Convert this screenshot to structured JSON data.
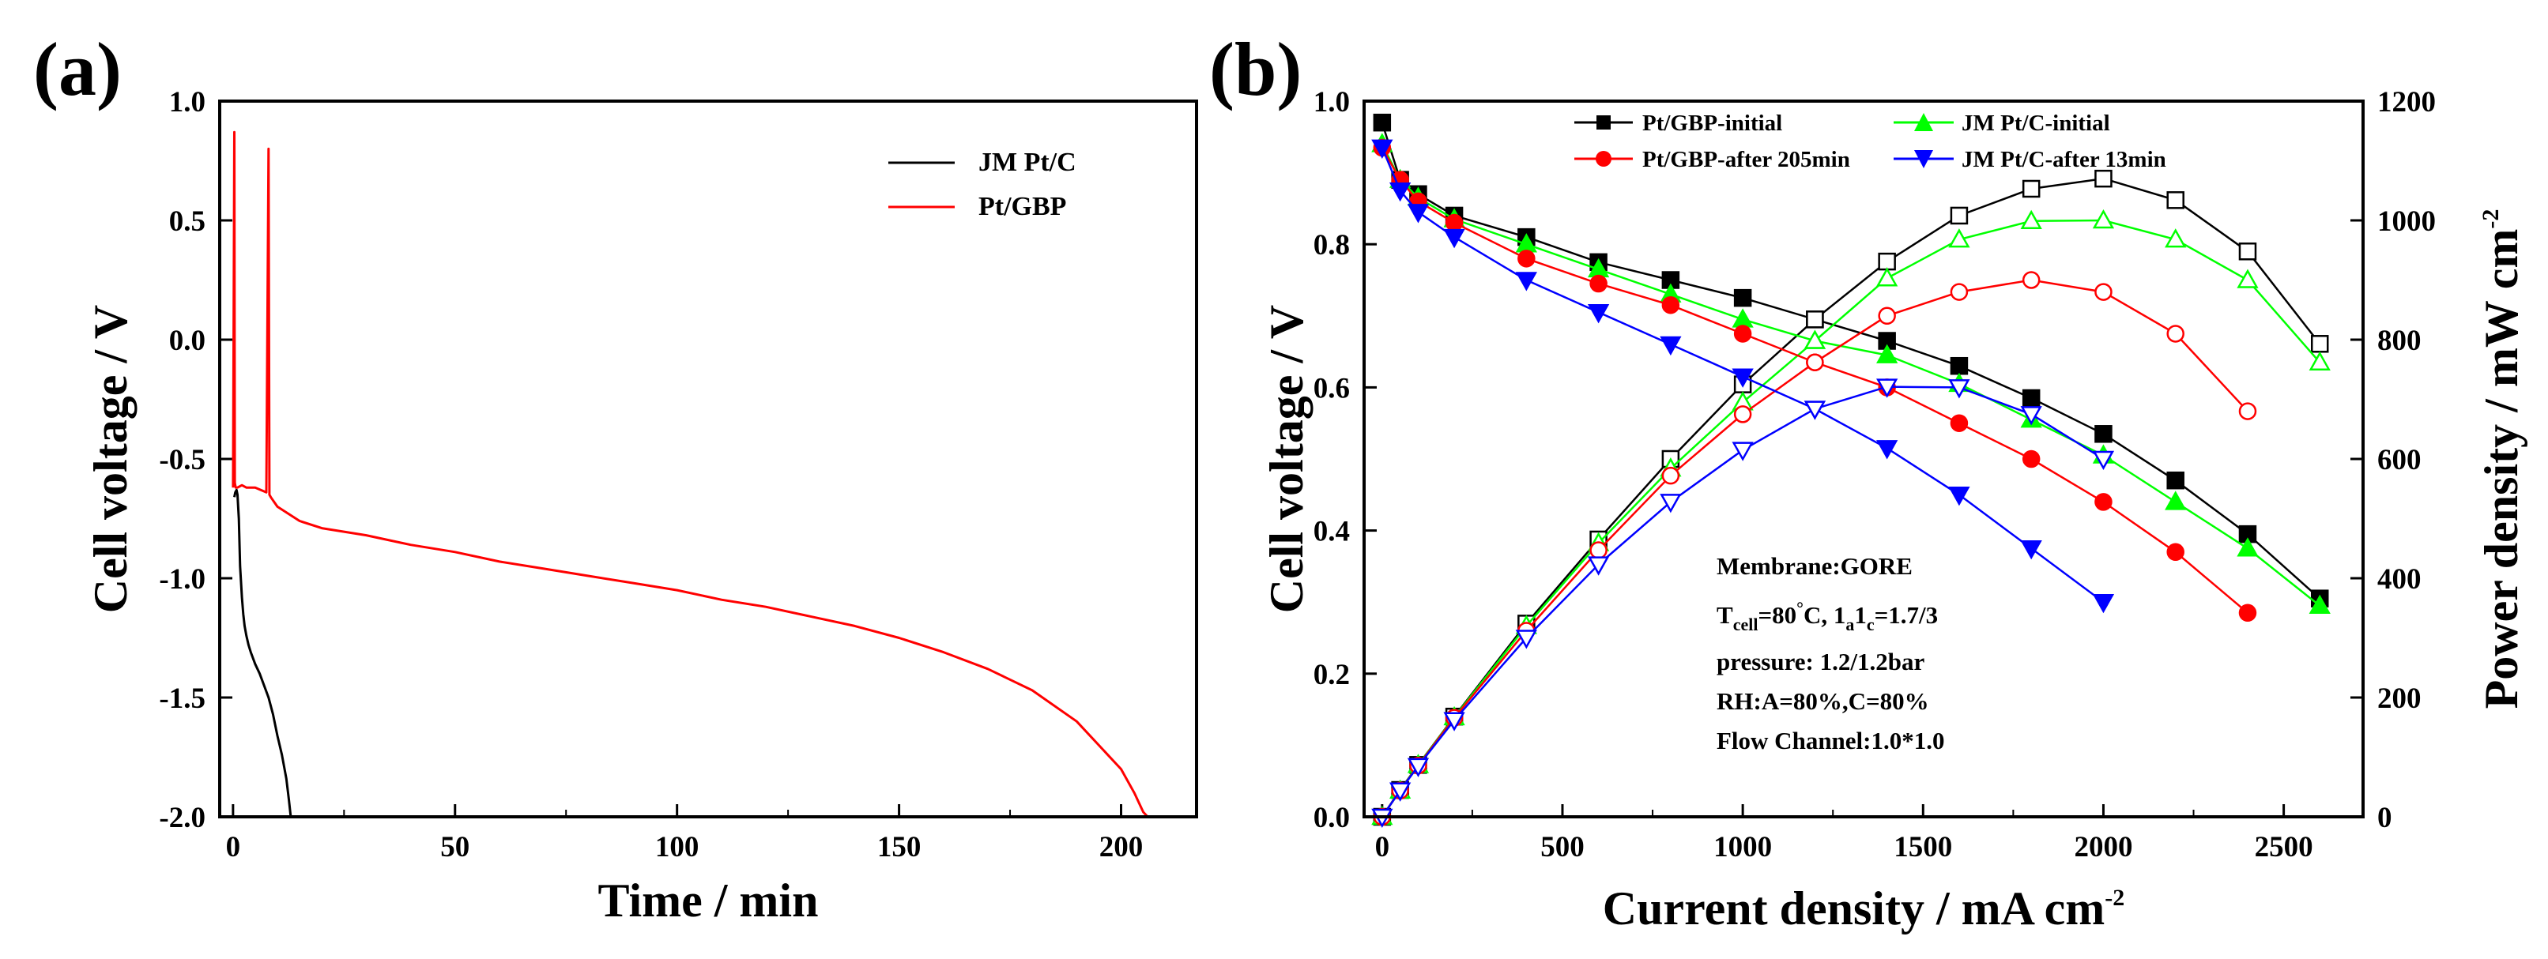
{
  "panel_a": {
    "label": "(a)",
    "chart_data": {
      "type": "line",
      "xlabel": "Time / min",
      "ylabel": "Cell voltage / V",
      "xlim": [
        -3,
        217
      ],
      "ylim": [
        -2.0,
        1.0
      ],
      "xticks": [
        0,
        50,
        100,
        150,
        200
      ],
      "yticks": [
        -2.0,
        -1.5,
        -1.0,
        -0.5,
        0.0,
        0.5,
        1.0
      ],
      "ytick_labels": [
        "-2.0",
        "-1.5",
        "-1.0",
        "-0.5",
        "0.0",
        "0.5",
        "1.0"
      ],
      "legend_position": "top-right",
      "series": [
        {
          "name": "JM Pt/C",
          "color": "#000000",
          "x": [
            0.3,
            0.5,
            0.8,
            1.0,
            1.3,
            1.6,
            2.0,
            2.3,
            2.6,
            3.0,
            3.5,
            4.0,
            5.0,
            6.0,
            7.0,
            8.0,
            9.0,
            10.0,
            11.0,
            12.0,
            12.6,
            13.0
          ],
          "y": [
            -0.66,
            -0.64,
            -0.63,
            -0.65,
            -0.75,
            -0.95,
            -1.08,
            -1.15,
            -1.2,
            -1.24,
            -1.28,
            -1.31,
            -1.36,
            -1.4,
            -1.45,
            -1.5,
            -1.57,
            -1.66,
            -1.74,
            -1.84,
            -1.93,
            -2.0
          ]
        },
        {
          "name": "Pt/GBP",
          "color": "#ff0000",
          "x": [
            0,
            0.3,
            0.4,
            0.6,
            1.0,
            2.0,
            3.0,
            5.0,
            7.5,
            8.0,
            8.2,
            8.5,
            10,
            15,
            20,
            30,
            40,
            50,
            60,
            70,
            80,
            90,
            100,
            110,
            120,
            130,
            140,
            150,
            160,
            170,
            180,
            190,
            195,
            200,
            203,
            205,
            206
          ],
          "y": [
            -0.62,
            0.87,
            -0.6,
            -0.62,
            -0.62,
            -0.61,
            -0.62,
            -0.62,
            -0.64,
            0.8,
            -0.65,
            -0.66,
            -0.7,
            -0.76,
            -0.79,
            -0.82,
            -0.86,
            -0.89,
            -0.93,
            -0.96,
            -0.99,
            -1.02,
            -1.05,
            -1.09,
            -1.12,
            -1.16,
            -1.2,
            -1.25,
            -1.31,
            -1.38,
            -1.47,
            -1.6,
            -1.7,
            -1.8,
            -1.9,
            -1.98,
            -2.0
          ]
        }
      ]
    }
  },
  "panel_b": {
    "label": "(b)",
    "chart_data": {
      "type": "line",
      "xlabel": "Current density / mA cm",
      "xlabel_sup": "-2",
      "ylabel_left": "Cell voltage / V",
      "ylabel_right": "Power density / mW cm",
      "ylabel_right_sup": "-2",
      "xlim": [
        -50,
        2720
      ],
      "ylim_left": [
        0.0,
        1.0
      ],
      "ylim_right": [
        0,
        1200
      ],
      "xticks": [
        0,
        500,
        1000,
        1500,
        2000,
        2500
      ],
      "yticks_left": [
        0.0,
        0.2,
        0.4,
        0.6,
        0.8,
        1.0
      ],
      "ytick_labels_left": [
        "0.0",
        "0.2",
        "0.4",
        "0.6",
        "0.8",
        "1.0"
      ],
      "yticks_right": [
        0,
        200,
        400,
        600,
        800,
        1000,
        1200
      ],
      "legend_position": "top",
      "series": [
        {
          "name": "Pt/GBP-initial",
          "color": "#000000",
          "marker": "square",
          "x": [
            0,
            50,
            100,
            200,
            400,
            600,
            800,
            1000,
            1200,
            1400,
            1600,
            1800,
            2000,
            2200,
            2400,
            2600
          ],
          "voltage": [
            0.97,
            0.89,
            0.87,
            0.84,
            0.81,
            0.775,
            0.75,
            0.725,
            0.695,
            0.665,
            0.63,
            0.585,
            0.535,
            0.47,
            0.395,
            0.305
          ],
          "power": [
            0,
            45,
            87,
            168,
            324,
            465,
            600,
            725,
            834,
            931,
            1008,
            1053,
            1070,
            1034,
            948,
            793
          ]
        },
        {
          "name": "JM Pt/C-initial",
          "color": "#00ff00",
          "marker": "triangle-up",
          "x": [
            0,
            50,
            100,
            200,
            400,
            600,
            800,
            1000,
            1200,
            1400,
            1600,
            1800,
            2000,
            2200,
            2400,
            2600
          ],
          "voltage": [
            0.94,
            0.89,
            0.865,
            0.835,
            0.8,
            0.765,
            0.73,
            0.695,
            0.665,
            0.645,
            0.605,
            0.555,
            0.505,
            0.44,
            0.375,
            0.295
          ],
          "power": [
            0,
            44,
            87,
            167,
            320,
            459,
            584,
            695,
            798,
            903,
            968,
            999,
            1000,
            968,
            900,
            762
          ]
        },
        {
          "name": "Pt/GBP-after 205min",
          "color": "#ff0000",
          "marker": "circle",
          "x": [
            0,
            50,
            100,
            200,
            400,
            600,
            800,
            1000,
            1200,
            1400,
            1600,
            1800,
            2000,
            2200,
            2400
          ],
          "voltage": [
            0.935,
            0.89,
            0.86,
            0.83,
            0.78,
            0.745,
            0.715,
            0.675,
            0.635,
            0.6,
            0.55,
            0.5,
            0.44,
            0.37,
            0.285
          ],
          "power": [
            0,
            44,
            86,
            166,
            312,
            447,
            572,
            675,
            762,
            840,
            880,
            900,
            880,
            810,
            680
          ]
        },
        {
          "name": "JM Pt/C-after 13min",
          "color": "#0000ff",
          "marker": "triangle-down",
          "x": [
            0,
            50,
            100,
            200,
            400,
            600,
            800,
            1000,
            1200,
            1400,
            1600,
            1800,
            2000
          ],
          "voltage": [
            0.935,
            0.875,
            0.845,
            0.81,
            0.75,
            0.705,
            0.66,
            0.615,
            0.57,
            0.515,
            0.45,
            0.375,
            0.3
          ],
          "power": [
            0,
            44,
            85,
            162,
            300,
            423,
            528,
            615,
            684,
            721,
            720,
            675,
            600
          ]
        }
      ]
    },
    "annotations": {
      "membrane": "Membrane:GORE",
      "t_prefix": "T",
      "t_sub": "cell",
      "t_mid": "=80",
      "t_deg": "°",
      "t_after_deg": "C, 1",
      "t_sub_a": "a",
      "t_one": "1",
      "t_sub_c": "c",
      "t_end": "=1.7/3",
      "pressure": "pressure:  1.2/1.2bar",
      "rh": "RH:A=80%,C=80%",
      "flow": "Flow Channel:1.0*1.0"
    }
  }
}
